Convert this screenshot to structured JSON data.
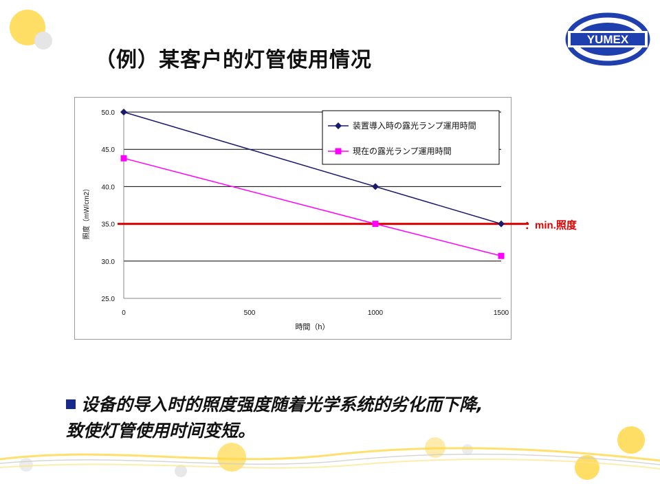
{
  "slide": {
    "title": "（例）某客户的灯管使用情况",
    "bullet_line1": "设备的导入时的照度强度随着光学系统的劣化而下降,",
    "bullet_line2": "致使灯管使用时间变短。"
  },
  "logo": {
    "text": "YUMEX",
    "color": "#1f3fae"
  },
  "colors": {
    "series1": "#1a1a6e",
    "series2": "#ff00ff",
    "threshold": "#e00000",
    "bullet": "#1a2a8a",
    "deco": "#ffd84a"
  },
  "chart_data": {
    "type": "line",
    "x": [
      0,
      1000,
      1500
    ],
    "x_ticks": [
      "0",
      "500",
      "1000",
      "1500"
    ],
    "y_ticks": [
      "25.0",
      "30.0",
      "35.0",
      "40.0",
      "45.0",
      "50.0"
    ],
    "xlabel": "時間（h）",
    "ylabel": "照度（mW/cm2）",
    "xlim": [
      0,
      1500
    ],
    "ylim": [
      25,
      50
    ],
    "grid": true,
    "legend_position": "top-right",
    "series": [
      {
        "name": "装置導入時の露光ランプ運用時間",
        "values": [
          50.0,
          40.0,
          35.0
        ],
        "marker": "diamond"
      },
      {
        "name": "現在の露光ランプ運用時間",
        "values": [
          43.8,
          35.0,
          30.7
        ],
        "marker": "square"
      }
    ],
    "threshold": {
      "value": 35.0,
      "label": "：min.照度"
    }
  }
}
